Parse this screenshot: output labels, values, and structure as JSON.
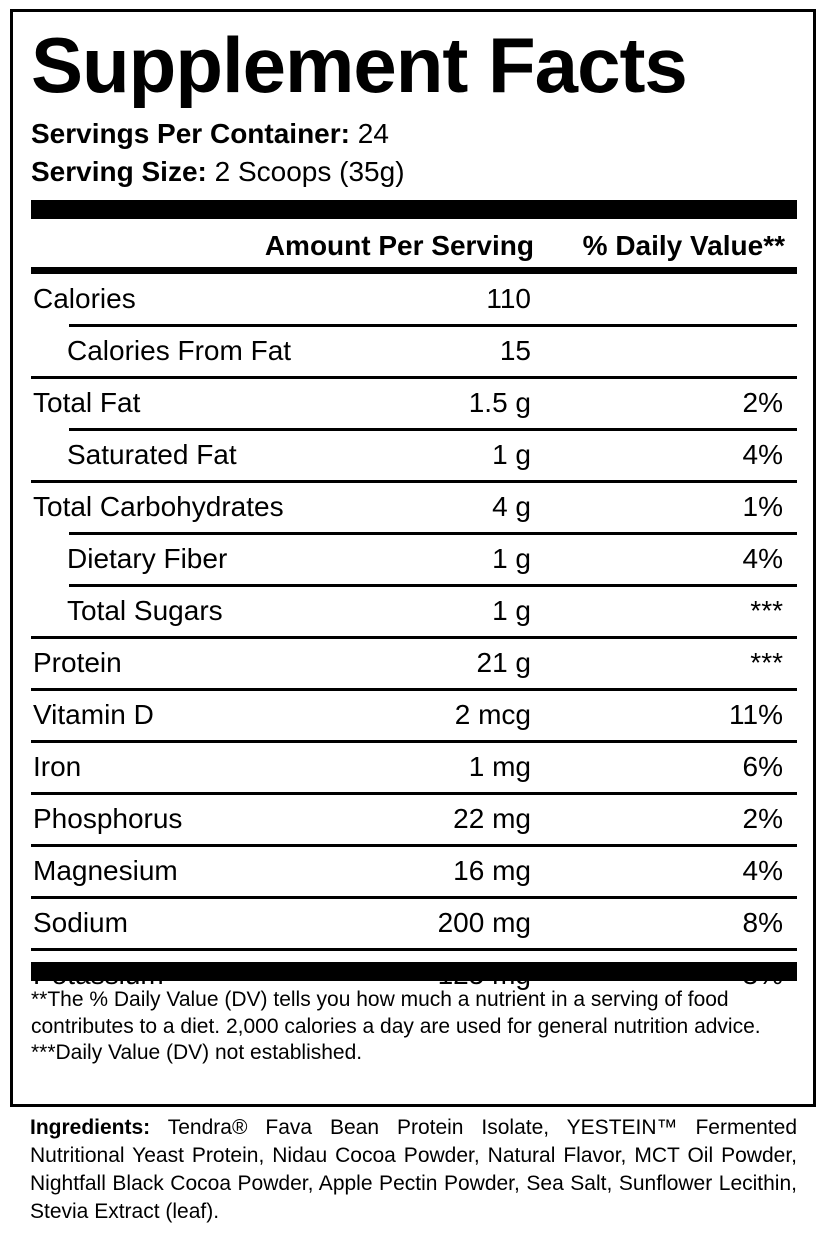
{
  "title": "Supplement Facts",
  "servings_per_container": {
    "label": "Servings Per Container:",
    "value": "24"
  },
  "serving_size": {
    "label": "Serving Size:",
    "value": "2 Scoops (35g)"
  },
  "header": {
    "amount": "Amount Per Serving",
    "daily_value": "% Daily Value**"
  },
  "rows": [
    {
      "name": "Calories",
      "amount": "110",
      "dv": "",
      "indent": false
    },
    {
      "name": "Calories From Fat",
      "amount": "15",
      "dv": "",
      "indent": true
    },
    {
      "name": "Total Fat",
      "amount": "1.5 g",
      "dv": "2%",
      "indent": false
    },
    {
      "name": "Saturated Fat",
      "amount": "1 g",
      "dv": "4%",
      "indent": true
    },
    {
      "name": "Total Carbohydrates",
      "amount": "4 g",
      "dv": "1%",
      "indent": false
    },
    {
      "name": "Dietary Fiber",
      "amount": "1 g",
      "dv": "4%",
      "indent": true
    },
    {
      "name": "Total Sugars",
      "amount": "1 g",
      "dv": "***",
      "indent": true
    },
    {
      "name": "Protein",
      "amount": "21 g",
      "dv": "***",
      "indent": false
    },
    {
      "name": "Vitamin D",
      "amount": "2 mcg",
      "dv": "11%",
      "indent": false
    },
    {
      "name": "Iron",
      "amount": "1 mg",
      "dv": "6%",
      "indent": false
    },
    {
      "name": "Phosphorus",
      "amount": "22 mg",
      "dv": "2%",
      "indent": false
    },
    {
      "name": "Magnesium",
      "amount": "16 mg",
      "dv": "4%",
      "indent": false
    },
    {
      "name": "Sodium",
      "amount": "200 mg",
      "dv": "8%",
      "indent": false
    },
    {
      "name": "Potassium",
      "amount": "125 mg",
      "dv": "3%",
      "indent": false
    }
  ],
  "footnotes": [
    "**The % Daily Value (DV) tells you how much a nutrient in a serving of food contributes to a diet. 2,000 calories a day are used for general nutrition advice.",
    "***Daily Value (DV) not established."
  ],
  "ingredients": {
    "label": "Ingredients:",
    "text": "Tendra® Fava Bean Protein Isolate, YESTEIN™ Fermented Nutritional Yeast Protein, Nidau Cocoa Powder, Natural Flavor, MCT Oil Powder, Nightfall Black Cocoa Powder, Apple Pectin Powder, Sea Salt, Sunflower Lecithin, Stevia Extract (leaf)."
  }
}
